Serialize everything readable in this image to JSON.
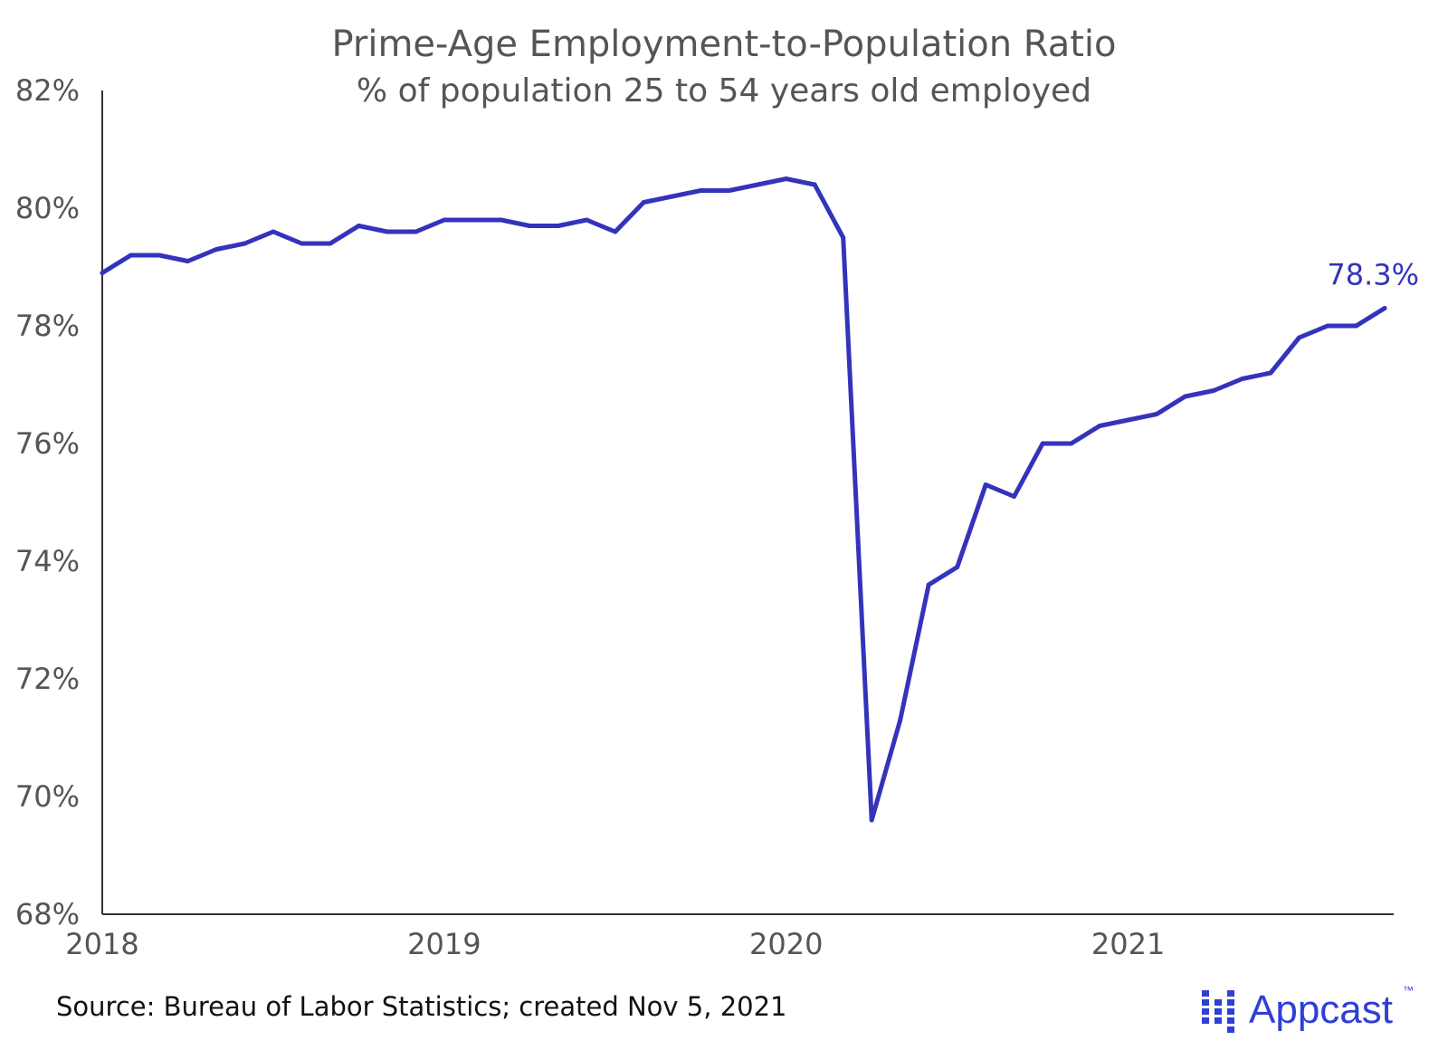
{
  "chart_data": {
    "type": "line",
    "title": "Prime-Age Employment-to-Population Ratio",
    "subtitle": "% of population 25 to 54 years old employed",
    "xlabel": "",
    "ylabel": "",
    "x_tick_labels": [
      "2018",
      "2019",
      "2020",
      "2021"
    ],
    "x_start": "2018-01",
    "x_end": "2021-10",
    "y_tick_labels": [
      "68%",
      "70%",
      "72%",
      "74%",
      "76%",
      "78%",
      "80%",
      "82%"
    ],
    "y_ticks": [
      68,
      70,
      72,
      74,
      76,
      78,
      80,
      82
    ],
    "ylim": [
      68,
      82
    ],
    "grid": false,
    "legend": "none",
    "series": [
      {
        "color": "#3333bb",
        "x": [
          "2018-01",
          "2018-02",
          "2018-03",
          "2018-04",
          "2018-05",
          "2018-06",
          "2018-07",
          "2018-08",
          "2018-09",
          "2018-10",
          "2018-11",
          "2018-12",
          "2019-01",
          "2019-02",
          "2019-03",
          "2019-04",
          "2019-05",
          "2019-06",
          "2019-07",
          "2019-08",
          "2019-09",
          "2019-10",
          "2019-11",
          "2019-12",
          "2020-01",
          "2020-02",
          "2020-03",
          "2020-04",
          "2020-05",
          "2020-06",
          "2020-07",
          "2020-08",
          "2020-09",
          "2020-10",
          "2020-11",
          "2020-12",
          "2021-01",
          "2021-02",
          "2021-03",
          "2021-04",
          "2021-05",
          "2021-06",
          "2021-07",
          "2021-08",
          "2021-09",
          "2021-10"
        ],
        "values": [
          78.9,
          79.2,
          79.2,
          79.1,
          79.3,
          79.4,
          79.6,
          79.4,
          79.4,
          79.7,
          79.6,
          79.6,
          79.8,
          79.8,
          79.8,
          79.7,
          79.7,
          79.8,
          79.6,
          80.1,
          80.2,
          80.3,
          80.3,
          80.4,
          80.5,
          80.4,
          79.5,
          69.6,
          71.3,
          73.6,
          73.9,
          75.3,
          75.1,
          76.0,
          76.0,
          76.3,
          76.4,
          76.5,
          76.8,
          76.9,
          77.1,
          77.2,
          77.8,
          78.0,
          78.0,
          78.3
        ]
      }
    ],
    "annotations": [
      {
        "text": "78.3%",
        "attached_to": "last point"
      }
    ]
  },
  "footer": {
    "source": "Source: Bureau of Labor Statistics; created Nov 5, 2021",
    "brand": "Appcast",
    "brand_mark": "™"
  },
  "colors": {
    "line": "#3333bb",
    "text": "#555555",
    "axis": "#333333",
    "brand": "#2f3fd6"
  }
}
